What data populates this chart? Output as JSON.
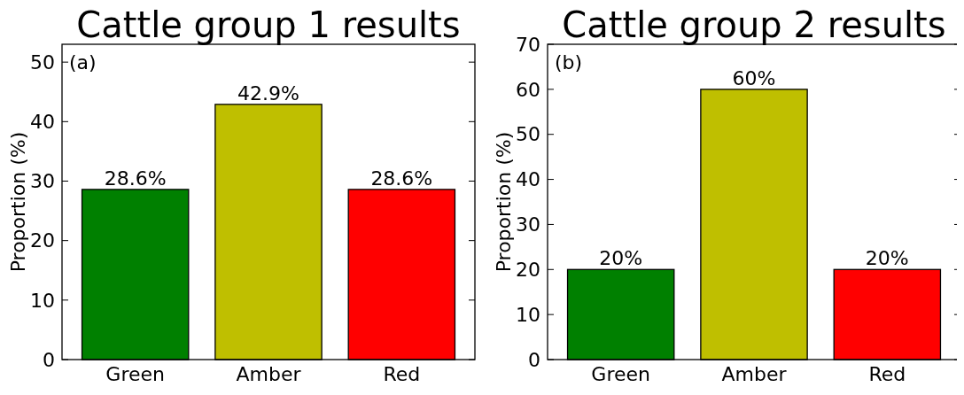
{
  "chart_data": [
    {
      "type": "bar",
      "title": "Cattle group 1 results",
      "ylabel": "Proportion (%)",
      "categories": [
        "Green",
        "Amber",
        "Red"
      ],
      "values": [
        28.6,
        42.9,
        28.6
      ],
      "colors": [
        "#008000",
        "#bfbf00",
        "#ff0000"
      ],
      "value_labels": [
        "28.6%",
        "42.9%",
        "28.6%"
      ],
      "ylim": [
        0,
        53
      ],
      "yticks": [
        0,
        10,
        20,
        30,
        40,
        50
      ],
      "annotations": [
        "(a)"
      ],
      "grid": false
    },
    {
      "type": "bar",
      "title": "Cattle group 2 results",
      "ylabel": "Proportion (%)",
      "categories": [
        "Green",
        "Amber",
        "Red"
      ],
      "values": [
        20,
        60,
        20
      ],
      "colors": [
        "#008000",
        "#bfbf00",
        "#ff0000"
      ],
      "value_labels": [
        "20%",
        "60%",
        "20%"
      ],
      "ylim": [
        0,
        70
      ],
      "yticks": [
        0,
        10,
        20,
        30,
        40,
        50,
        60,
        70
      ],
      "annotations": [
        "(b)"
      ],
      "grid": false
    }
  ]
}
